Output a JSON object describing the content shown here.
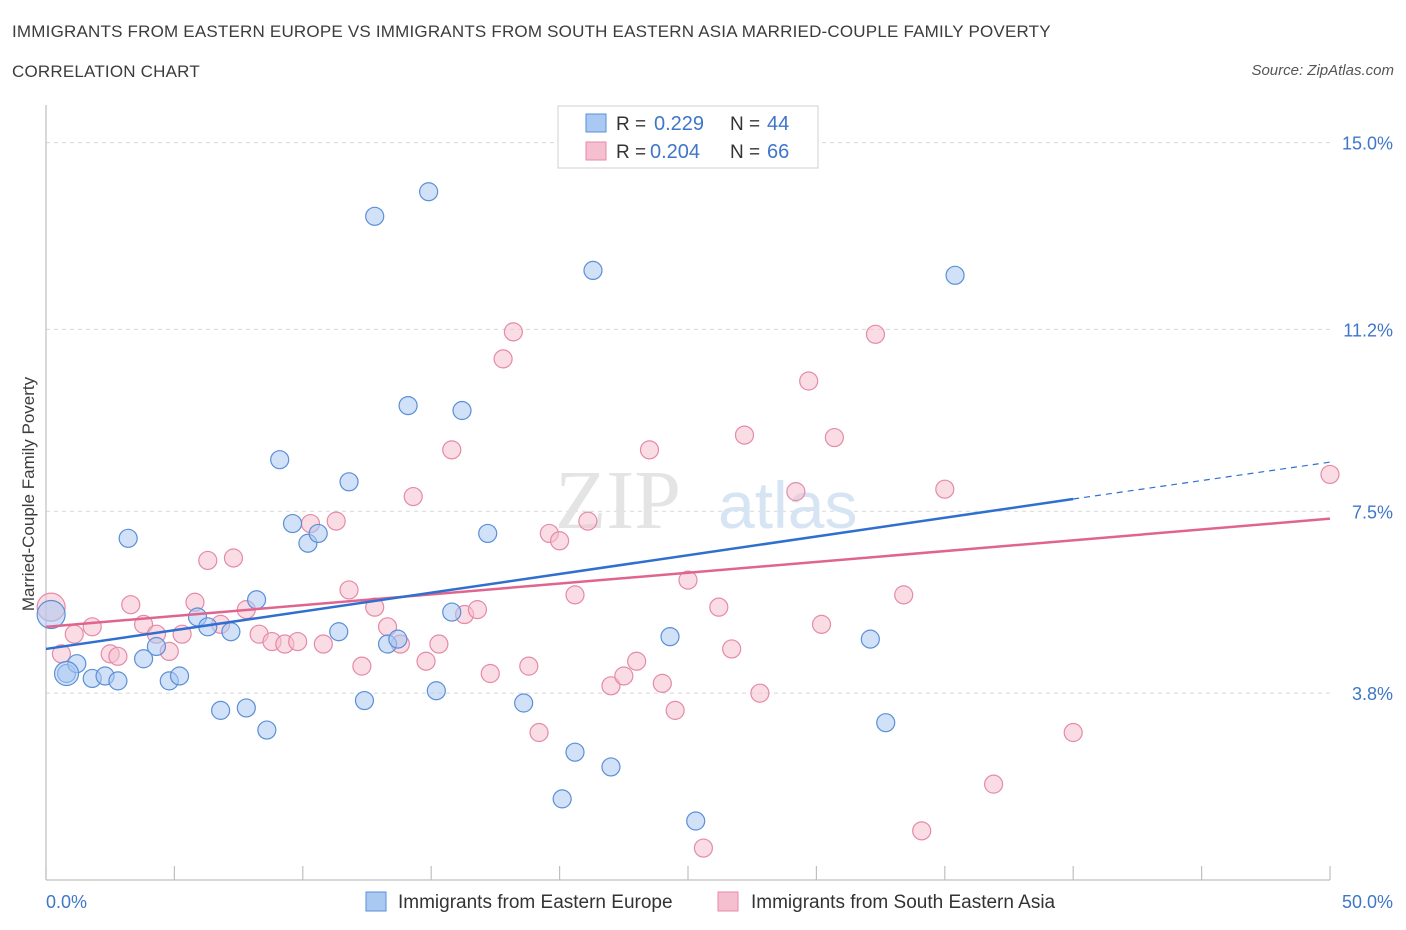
{
  "header": {
    "title_line1": "IMMIGRANTS FROM EASTERN EUROPE VS IMMIGRANTS FROM SOUTH EASTERN ASIA MARRIED-COUPLE FAMILY POVERTY",
    "title_line2": "CORRELATION CHART",
    "source": "Source: ZipAtlas.com"
  },
  "watermark": {
    "part1": "ZIP",
    "part2": "atlas"
  },
  "colors": {
    "blue_fill": "#a9c9f2",
    "blue_stroke": "#5b8fd6",
    "blue_line": "#2f6fcf",
    "pink_fill": "#f5bfd0",
    "pink_stroke": "#e58aa8",
    "pink_line": "#e0658e",
    "axis_label": "#3f76c9",
    "grid": "#d8d8d8"
  },
  "legend_box": {
    "rows": [
      {
        "r_label": "R =",
        "r_value": "0.229",
        "n_label": "N =",
        "n_value": "44"
      },
      {
        "r_label": "R =",
        "r_value": "0.204",
        "n_label": "N =",
        "n_value": "66"
      }
    ]
  },
  "chart_data": {
    "type": "scatter",
    "title": "IMMIGRANTS FROM EASTERN EUROPE VS IMMIGRANTS FROM SOUTH EASTERN ASIA MARRIED-COUPLE FAMILY POVERTY CORRELATION CHART",
    "xlabel": "",
    "ylabel": "Married-Couple Family Poverty",
    "xlim": [
      0,
      50
    ],
    "ylim": [
      0,
      15.5
    ],
    "x_tick_labels": [
      "0.0%",
      "50.0%"
    ],
    "y_ticks": [
      3.8,
      7.5,
      11.2,
      15.0
    ],
    "y_tick_labels": [
      "3.8%",
      "7.5%",
      "11.2%",
      "15.0%"
    ],
    "legend_placement": "bottom-center",
    "series": [
      {
        "name": "Immigrants from Eastern Europe",
        "R": 0.229,
        "N": 44,
        "trend": {
          "x0": 0,
          "y0": 4.7,
          "x1": 40,
          "y1": 7.75,
          "dash_x1": 50,
          "dash_y1": 8.5
        },
        "points": [
          [
            0.2,
            5.4
          ],
          [
            0.8,
            4.2
          ],
          [
            1.2,
            4.4
          ],
          [
            1.8,
            4.1
          ],
          [
            2.3,
            4.15
          ],
          [
            2.8,
            4.05
          ],
          [
            3.2,
            6.95
          ],
          [
            3.8,
            4.5
          ],
          [
            4.3,
            4.75
          ],
          [
            4.8,
            4.05
          ],
          [
            5.2,
            4.15
          ],
          [
            5.9,
            5.35
          ],
          [
            6.3,
            5.15
          ],
          [
            6.8,
            3.45
          ],
          [
            7.2,
            5.05
          ],
          [
            7.8,
            3.5
          ],
          [
            8.2,
            5.7
          ],
          [
            8.6,
            3.05
          ],
          [
            9.1,
            8.55
          ],
          [
            9.6,
            7.25
          ],
          [
            10.2,
            6.85
          ],
          [
            10.6,
            7.05
          ],
          [
            11.4,
            5.05
          ],
          [
            11.8,
            8.1
          ],
          [
            12.4,
            3.65
          ],
          [
            12.8,
            13.5
          ],
          [
            13.3,
            4.8
          ],
          [
            13.7,
            4.9
          ],
          [
            14.1,
            9.65
          ],
          [
            14.9,
            14.0
          ],
          [
            15.2,
            3.85
          ],
          [
            15.8,
            5.45
          ],
          [
            16.2,
            9.55
          ],
          [
            17.2,
            7.05
          ],
          [
            18.6,
            3.6
          ],
          [
            20.1,
            1.65
          ],
          [
            20.6,
            2.6
          ],
          [
            21.3,
            12.4
          ],
          [
            22.0,
            2.3
          ],
          [
            24.3,
            4.95
          ],
          [
            25.3,
            1.2
          ],
          [
            32.1,
            4.9
          ],
          [
            32.7,
            3.2
          ],
          [
            35.4,
            12.3
          ]
        ]
      },
      {
        "name": "Immigrants from South Eastern Asia",
        "R": 0.204,
        "N": 66,
        "trend": {
          "x0": 0,
          "y0": 5.15,
          "x1": 50,
          "y1": 7.35
        },
        "points": [
          [
            0.2,
            5.55
          ],
          [
            0.6,
            4.6
          ],
          [
            1.1,
            5.0
          ],
          [
            1.8,
            5.15
          ],
          [
            2.5,
            4.6
          ],
          [
            2.8,
            4.55
          ],
          [
            3.3,
            5.6
          ],
          [
            3.8,
            5.2
          ],
          [
            4.3,
            5.0
          ],
          [
            4.8,
            4.65
          ],
          [
            5.3,
            5.0
          ],
          [
            5.8,
            5.65
          ],
          [
            6.3,
            6.5
          ],
          [
            6.8,
            5.2
          ],
          [
            7.3,
            6.55
          ],
          [
            7.8,
            5.5
          ],
          [
            8.3,
            5.0
          ],
          [
            8.8,
            4.85
          ],
          [
            9.3,
            4.8
          ],
          [
            9.8,
            4.85
          ],
          [
            10.3,
            7.25
          ],
          [
            10.8,
            4.8
          ],
          [
            11.3,
            7.3
          ],
          [
            11.8,
            5.9
          ],
          [
            12.3,
            4.35
          ],
          [
            12.8,
            5.55
          ],
          [
            13.3,
            5.15
          ],
          [
            13.8,
            4.8
          ],
          [
            14.3,
            7.8
          ],
          [
            14.8,
            4.45
          ],
          [
            15.3,
            4.8
          ],
          [
            15.8,
            8.75
          ],
          [
            16.3,
            5.4
          ],
          [
            16.8,
            5.5
          ],
          [
            17.3,
            4.2
          ],
          [
            17.8,
            10.6
          ],
          [
            18.2,
            11.15
          ],
          [
            18.8,
            4.35
          ],
          [
            19.2,
            3.0
          ],
          [
            19.6,
            7.05
          ],
          [
            20.0,
            6.9
          ],
          [
            20.6,
            5.8
          ],
          [
            21.1,
            7.3
          ],
          [
            22.0,
            3.95
          ],
          [
            22.5,
            4.15
          ],
          [
            23.0,
            4.45
          ],
          [
            23.5,
            8.75
          ],
          [
            24.0,
            4.0
          ],
          [
            24.5,
            3.45
          ],
          [
            25.0,
            6.1
          ],
          [
            25.6,
            0.65
          ],
          [
            26.2,
            5.55
          ],
          [
            26.7,
            4.7
          ],
          [
            27.2,
            9.05
          ],
          [
            27.8,
            3.8
          ],
          [
            29.2,
            7.9
          ],
          [
            29.7,
            10.15
          ],
          [
            30.2,
            5.2
          ],
          [
            30.7,
            9.0
          ],
          [
            32.3,
            11.1
          ],
          [
            33.4,
            5.8
          ],
          [
            34.1,
            1.0
          ],
          [
            35.0,
            7.95
          ],
          [
            36.9,
            1.95
          ],
          [
            40.0,
            3.0
          ],
          [
            50.0,
            8.25
          ]
        ],
        "sizes_note": "first point larger"
      }
    ]
  },
  "bottom_legend": {
    "items": [
      {
        "label": "Immigrants from Eastern Europe"
      },
      {
        "label": "Immigrants from South Eastern Asia"
      }
    ]
  }
}
